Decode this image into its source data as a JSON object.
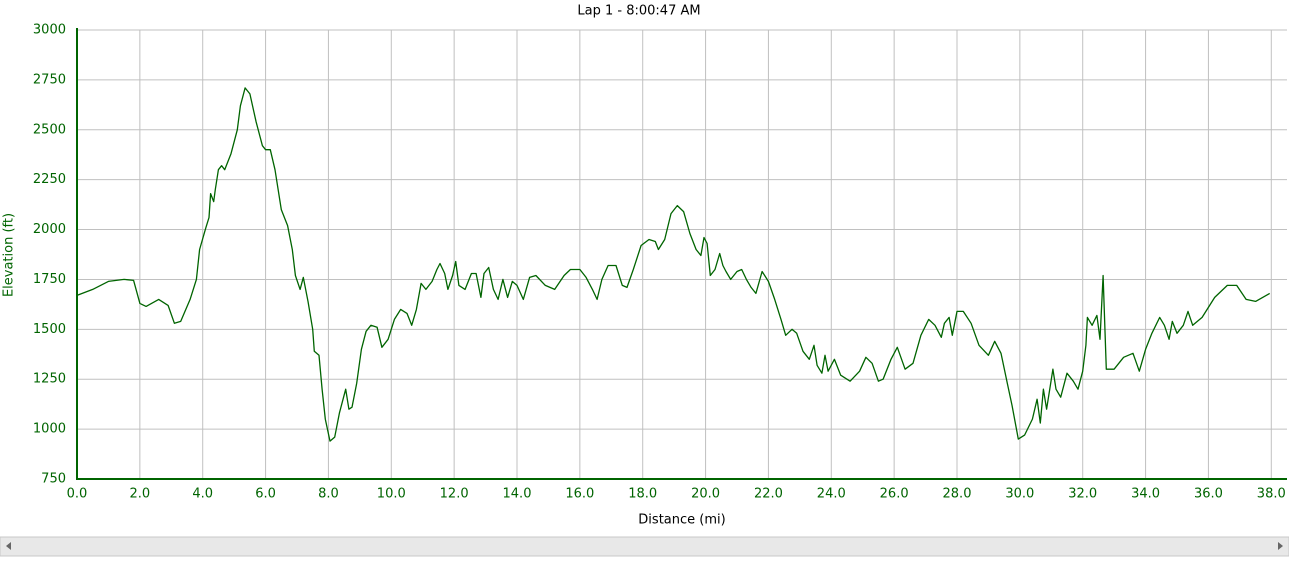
{
  "chart_data": {
    "type": "line",
    "title": "Lap 1 - 8:00:47 AM",
    "x_label": "Distance (mi)",
    "y_label": "Elevation (ft)",
    "color": "#006400",
    "grid": true,
    "xlim": [
      0,
      38.5
    ],
    "ylim": [
      750,
      3000
    ],
    "xticks": [
      {
        "value": 0,
        "label": "0.0"
      },
      {
        "value": 2,
        "label": "2.0"
      },
      {
        "value": 4,
        "label": "4.0"
      },
      {
        "value": 6,
        "label": "6.0"
      },
      {
        "value": 8,
        "label": "8.0"
      },
      {
        "value": 10,
        "label": "10.0"
      },
      {
        "value": 12,
        "label": "12.0"
      },
      {
        "value": 14,
        "label": "14.0"
      },
      {
        "value": 16,
        "label": "16.0"
      },
      {
        "value": 18,
        "label": "18.0"
      },
      {
        "value": 20,
        "label": "20.0"
      },
      {
        "value": 22,
        "label": "22.0"
      },
      {
        "value": 24,
        "label": "24.0"
      },
      {
        "value": 26,
        "label": "26.0"
      },
      {
        "value": 28,
        "label": "28.0"
      },
      {
        "value": 30,
        "label": "30.0"
      },
      {
        "value": 32,
        "label": "32.0"
      },
      {
        "value": 34,
        "label": "34.0"
      },
      {
        "value": 36,
        "label": "36.0"
      },
      {
        "value": 38,
        "label": "38.0"
      }
    ],
    "yticks": [
      750,
      1000,
      1250,
      1500,
      1750,
      2000,
      2250,
      2500,
      2750,
      3000
    ],
    "x": [
      0,
      0.5,
      1.0,
      1.5,
      1.8,
      2.0,
      2.2,
      2.6,
      2.9,
      3.1,
      3.3,
      3.6,
      3.8,
      3.9,
      4.1,
      4.2,
      4.25,
      4.35,
      4.4,
      4.5,
      4.6,
      4.7,
      4.9,
      5.1,
      5.2,
      5.35,
      5.5,
      5.7,
      5.9,
      6.0,
      6.15,
      6.3,
      6.5,
      6.7,
      6.85,
      6.95,
      7.1,
      7.2,
      7.35,
      7.5,
      7.55,
      7.7,
      7.8,
      7.9,
      8.05,
      8.2,
      8.35,
      8.55,
      8.65,
      8.75,
      8.9,
      9.05,
      9.2,
      9.35,
      9.55,
      9.7,
      9.9,
      10.1,
      10.3,
      10.5,
      10.65,
      10.8,
      10.95,
      11.1,
      11.3,
      11.45,
      11.55,
      11.7,
      11.8,
      11.95,
      12.05,
      12.15,
      12.35,
      12.55,
      12.7,
      12.85,
      12.95,
      13.1,
      13.25,
      13.4,
      13.55,
      13.7,
      13.85,
      14.0,
      14.2,
      14.4,
      14.6,
      14.9,
      15.2,
      15.5,
      15.7,
      16.0,
      16.2,
      16.4,
      16.55,
      16.7,
      16.9,
      17.15,
      17.35,
      17.5,
      17.7,
      17.95,
      18.2,
      18.4,
      18.5,
      18.7,
      18.9,
      19.1,
      19.3,
      19.5,
      19.7,
      19.85,
      19.95,
      20.05,
      20.15,
      20.3,
      20.45,
      20.55,
      20.65,
      20.8,
      21.0,
      21.15,
      21.3,
      21.45,
      21.6,
      21.8,
      22.0,
      22.2,
      22.4,
      22.55,
      22.75,
      22.9,
      23.1,
      23.3,
      23.45,
      23.55,
      23.7,
      23.8,
      23.9,
      24.1,
      24.3,
      24.6,
      24.9,
      25.1,
      25.3,
      25.5,
      25.65,
      25.9,
      26.1,
      26.35,
      26.6,
      26.85,
      27.1,
      27.3,
      27.5,
      27.6,
      27.75,
      27.85,
      28.0,
      28.2,
      28.45,
      28.7,
      29.0,
      29.2,
      29.4,
      29.6,
      29.75,
      29.95,
      30.15,
      30.4,
      30.55,
      30.65,
      30.75,
      30.85,
      31.05,
      31.15,
      31.3,
      31.5,
      31.7,
      31.85,
      32.0,
      32.1,
      32.15,
      32.3,
      32.45,
      32.55,
      32.65,
      32.75,
      33.0,
      33.3,
      33.6,
      33.8,
      34.0,
      34.2,
      34.45,
      34.6,
      34.75,
      34.85,
      35.0,
      35.2,
      35.35,
      35.5,
      35.8,
      36.2,
      36.6,
      36.9,
      37.2,
      37.5,
      37.95
    ],
    "values": [
      1670,
      1700,
      1740,
      1750,
      1745,
      1630,
      1615,
      1650,
      1620,
      1530,
      1540,
      1650,
      1750,
      1900,
      2010,
      2060,
      2180,
      2140,
      2200,
      2300,
      2320,
      2300,
      2380,
      2500,
      2620,
      2710,
      2680,
      2540,
      2420,
      2400,
      2400,
      2300,
      2100,
      2020,
      1900,
      1770,
      1700,
      1760,
      1640,
      1500,
      1390,
      1370,
      1200,
      1050,
      940,
      960,
      1080,
      1200,
      1100,
      1110,
      1230,
      1400,
      1490,
      1520,
      1510,
      1410,
      1450,
      1550,
      1600,
      1580,
      1520,
      1600,
      1730,
      1700,
      1740,
      1800,
      1830,
      1780,
      1700,
      1770,
      1840,
      1720,
      1700,
      1780,
      1780,
      1660,
      1780,
      1810,
      1700,
      1650,
      1750,
      1660,
      1740,
      1720,
      1650,
      1760,
      1770,
      1720,
      1700,
      1770,
      1800,
      1800,
      1760,
      1700,
      1650,
      1750,
      1820,
      1820,
      1720,
      1710,
      1800,
      1920,
      1950,
      1940,
      1900,
      1950,
      2080,
      2120,
      2090,
      1980,
      1900,
      1870,
      1960,
      1930,
      1770,
      1800,
      1880,
      1820,
      1790,
      1750,
      1790,
      1800,
      1750,
      1710,
      1680,
      1790,
      1740,
      1650,
      1550,
      1470,
      1500,
      1480,
      1390,
      1350,
      1420,
      1320,
      1280,
      1370,
      1290,
      1350,
      1270,
      1240,
      1290,
      1360,
      1330,
      1240,
      1250,
      1350,
      1410,
      1300,
      1330,
      1470,
      1550,
      1520,
      1460,
      1530,
      1560,
      1470,
      1590,
      1590,
      1530,
      1420,
      1370,
      1440,
      1380,
      1230,
      1120,
      950,
      970,
      1050,
      1150,
      1030,
      1200,
      1100,
      1300,
      1200,
      1160,
      1280,
      1240,
      1200,
      1290,
      1420,
      1560,
      1520,
      1570,
      1450,
      1770,
      1300,
      1300,
      1360,
      1380,
      1290,
      1400,
      1480,
      1560,
      1520,
      1450,
      1540,
      1480,
      1520,
      1590,
      1520,
      1560,
      1660,
      1720,
      1720,
      1650,
      1640,
      1680
    ]
  }
}
